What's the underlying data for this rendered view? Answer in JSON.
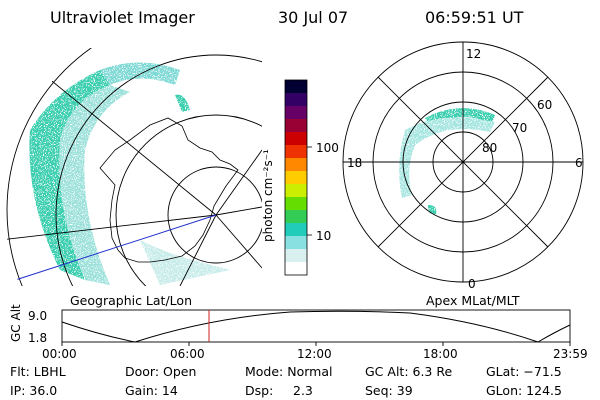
{
  "header": {
    "instrument": "Ultraviolet Imager",
    "date": "30 Jul 07",
    "time": "06:59:51 UT"
  },
  "colorbar": {
    "unit_label": "photon cm⁻²s⁻¹",
    "ticks": [
      "100",
      "10"
    ],
    "colors": [
      "#000033",
      "#330066",
      "#660066",
      "#990033",
      "#cc0000",
      "#ee3300",
      "#ff8800",
      "#ffcc00",
      "#ccee00",
      "#66dd00",
      "#33cc55",
      "#22ccbb",
      "#88e0e0",
      "#d8f0f0",
      "#ffffff"
    ]
  },
  "geo_map": {
    "label": "Geographic Lat/Lon"
  },
  "polar_map": {
    "label": "Apex MLat/MLT",
    "mlt_labels": {
      "top": "12",
      "left": "18",
      "right": "6",
      "bottom": "0"
    },
    "lat_labels": [
      "60",
      "70",
      "80"
    ]
  },
  "gc_alt_plot": {
    "ylabel": "GC Alt",
    "ymax": "9.0",
    "ymin": "1.8",
    "xticks": [
      "00:00",
      "06:00",
      "12:00",
      "18:00",
      "23:59"
    ],
    "marker_time": "06:59:51"
  },
  "info": {
    "flt": "Flt: LBHL",
    "ip": "IP: 36.0",
    "door": "Door: Open",
    "gain": "Gain: 14",
    "mode": "Mode: Normal",
    "dsp": "Dsp:",
    "dsp_value": "2.3",
    "gc_alt": "GC Alt: 6.3 Re",
    "seq": "Seq: 39",
    "glat": "GLat: −71.5",
    "glon": "GLon: 124.5"
  }
}
